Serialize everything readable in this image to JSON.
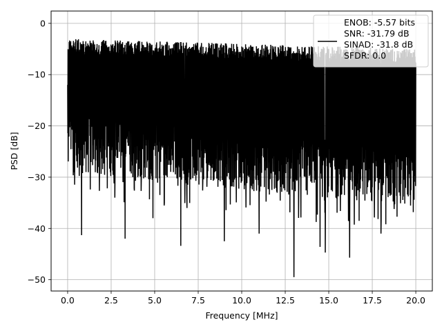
{
  "chart_data": {
    "type": "line",
    "title": "",
    "xlabel": "Frequency [MHz]",
    "ylabel": "PSD [dB]",
    "xlim": [
      -0.95,
      20.95
    ],
    "ylim": [
      -52.2,
      2.4
    ],
    "xticks": [
      0.0,
      2.5,
      5.0,
      7.5,
      10.0,
      12.5,
      15.0,
      17.5,
      20.0
    ],
    "xtick_labels": [
      "0.0",
      "2.5",
      "5.0",
      "7.5",
      "10.0",
      "12.5",
      "15.0",
      "17.5",
      "20.0"
    ],
    "yticks": [
      0,
      -10,
      -20,
      -30,
      -40,
      -50
    ],
    "ytick_labels": [
      "0",
      "−10",
      "−20",
      "−30",
      "−40",
      "−50"
    ],
    "grid": true,
    "legend_position": "top-right",
    "series": [
      {
        "color": "#000000",
        "x_range": [
          0,
          20
        ],
        "upper_envelope_db": [
          -3,
          -5
        ],
        "typical_floor_db": [
          -25,
          -32
        ],
        "deep_nulls": [
          {
            "x": 0.8,
            "y": -41.3
          },
          {
            "x": 3.3,
            "y": -42.0
          },
          {
            "x": 4.9,
            "y": -38.0
          },
          {
            "x": 6.5,
            "y": -43.4
          },
          {
            "x": 9.0,
            "y": -42.5
          },
          {
            "x": 11.0,
            "y": -41.0
          },
          {
            "x": 13.0,
            "y": -49.5
          },
          {
            "x": 14.5,
            "y": -43.6
          },
          {
            "x": 14.8,
            "y": -44.7
          },
          {
            "x": 16.2,
            "y": -45.7
          },
          {
            "x": 18.0,
            "y": -41.0
          }
        ]
      }
    ],
    "legend": {
      "lines": [
        "ENOB: -5.57 bits",
        "SNR: -31.79 dB",
        "SINAD: -31.8 dB",
        "SFDR: 0.0"
      ]
    }
  }
}
